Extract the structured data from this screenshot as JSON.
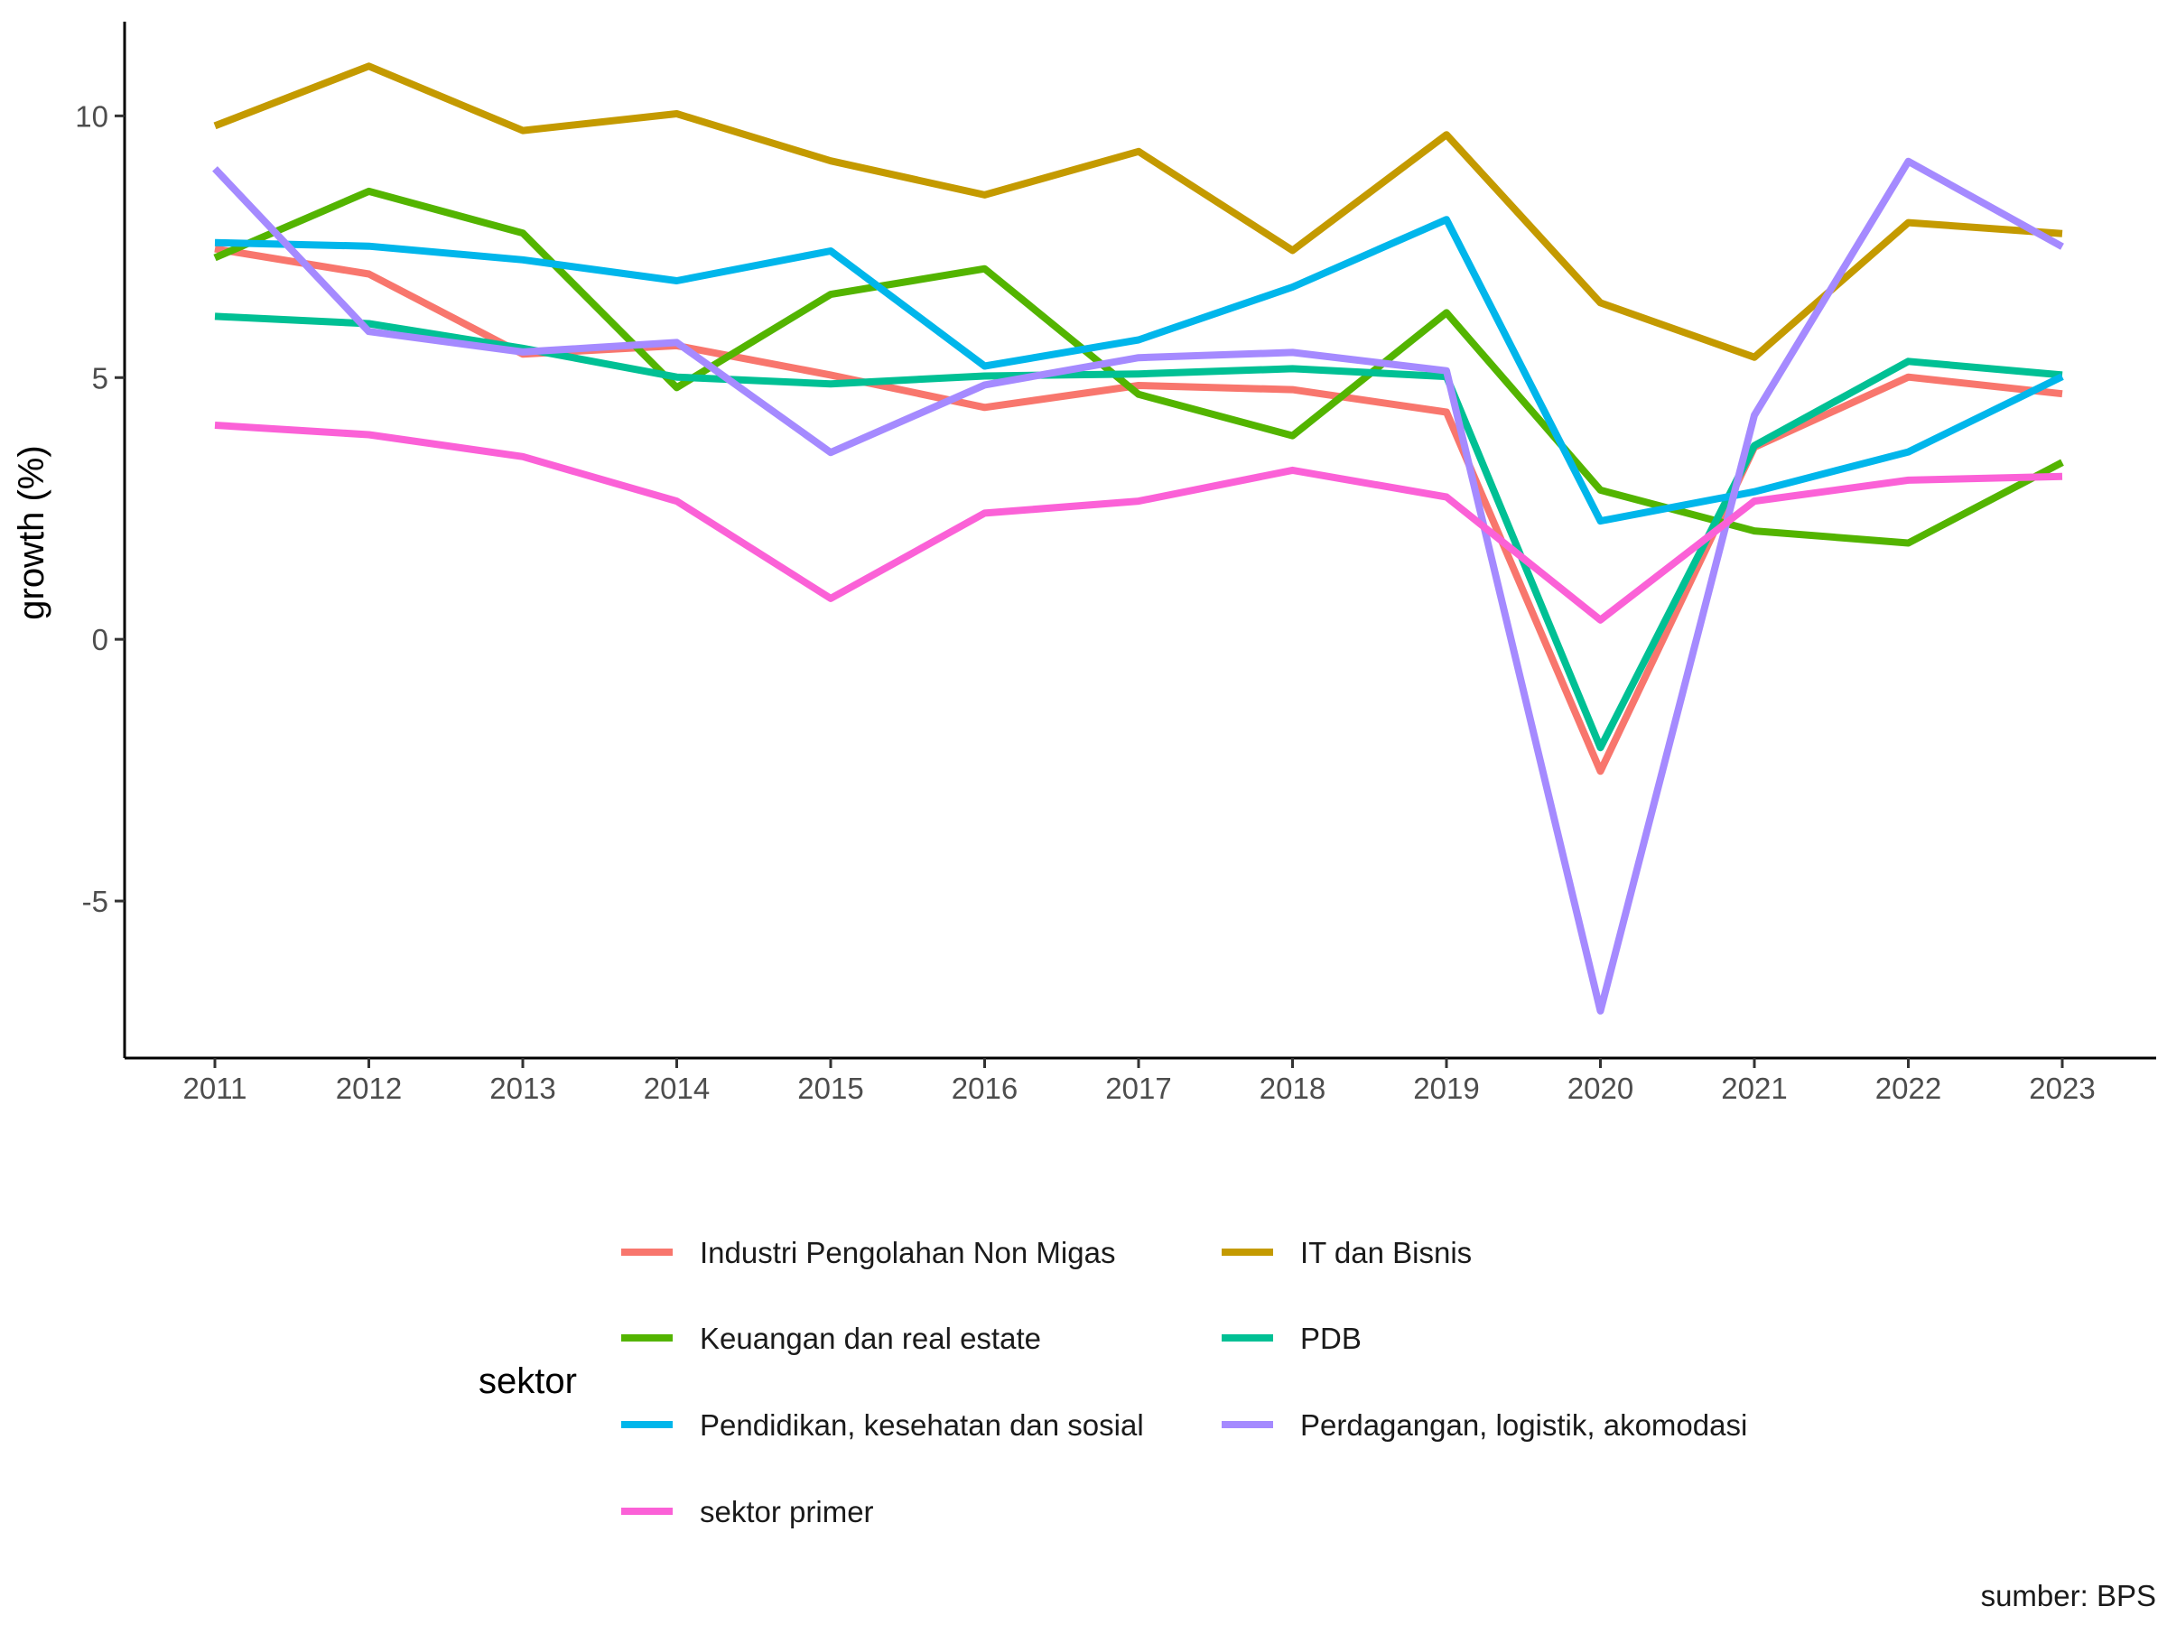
{
  "chart_data": {
    "type": "line",
    "ylabel": "growth (%)",
    "x": [
      "2011",
      "2012",
      "2013",
      "2014",
      "2015",
      "2016",
      "2017",
      "2018",
      "2019",
      "2020",
      "2021",
      "2022",
      "2023"
    ],
    "ylim": [
      -8.0,
      11.8
    ],
    "yticks": [
      -5,
      0,
      5,
      10
    ],
    "grid": false,
    "legend_title": "sektor",
    "legend_position": "bottom",
    "caption": "sumber: BPS",
    "series": [
      {
        "name": "Industri Pengolahan Non Migas",
        "color": "#F8766D",
        "values": [
          7.46,
          6.98,
          5.45,
          5.61,
          5.05,
          4.43,
          4.85,
          4.77,
          4.34,
          -2.52,
          3.67,
          5.01,
          4.69
        ]
      },
      {
        "name": "IT dan Bisnis",
        "color": "#C49A00",
        "values": [
          9.81,
          10.95,
          9.72,
          10.04,
          9.14,
          8.49,
          9.32,
          7.43,
          9.64,
          6.43,
          5.39,
          7.96,
          7.75
        ]
      },
      {
        "name": "Keuangan dan real estate",
        "color": "#53B400",
        "values": [
          7.29,
          8.56,
          7.76,
          4.81,
          6.59,
          7.08,
          4.68,
          3.89,
          6.24,
          2.85,
          2.07,
          1.84,
          3.38
        ]
      },
      {
        "name": "PDB",
        "color": "#00C094",
        "values": [
          6.17,
          6.03,
          5.56,
          5.01,
          4.88,
          5.03,
          5.07,
          5.17,
          5.02,
          -2.07,
          3.7,
          5.31,
          5.05
        ]
      },
      {
        "name": "Pendidikan, kesehatan dan sosial",
        "color": "#00B6EB",
        "values": [
          7.58,
          7.51,
          7.25,
          6.85,
          7.42,
          5.22,
          5.72,
          6.73,
          8.02,
          2.26,
          2.82,
          3.58,
          5.02
        ]
      },
      {
        "name": "Perdagangan, logistik, akomodasi",
        "color": "#A58AFF",
        "values": [
          8.99,
          5.88,
          5.49,
          5.67,
          3.57,
          4.86,
          5.38,
          5.48,
          5.13,
          -7.1,
          4.28,
          9.13,
          7.5
        ]
      },
      {
        "name": "sektor primer",
        "color": "#FB61D7",
        "values": [
          4.09,
          3.91,
          3.49,
          2.64,
          0.78,
          2.41,
          2.64,
          3.23,
          2.72,
          0.37,
          2.64,
          3.04,
          3.11
        ]
      }
    ]
  }
}
